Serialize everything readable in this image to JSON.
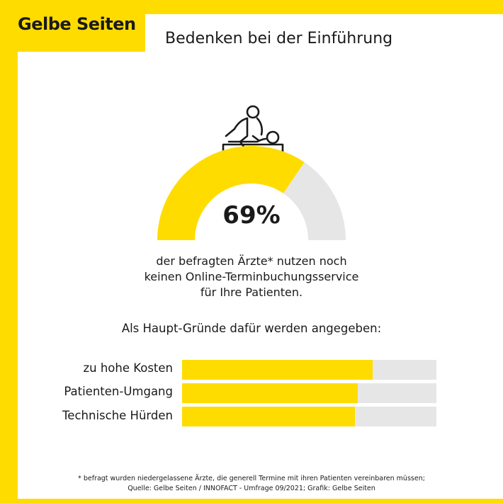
{
  "brand": "Gelbe Seiten",
  "title": "Bedenken bei der Einführung",
  "icon": "massage-therapy-icon",
  "colors": {
    "accent": "#ffdc00",
    "track": "#e6e6e6",
    "text": "#1a1a1a"
  },
  "gauge": {
    "value": 69,
    "label": "69%"
  },
  "description": [
    "der befragten Ärzte* nutzen noch",
    "keinen Online-Terminbuchungsservice",
    "für Ihre Patienten."
  ],
  "subheading": "Als Haupt-Gründe dafür werden angegeben:",
  "chart_data": [
    {
      "type": "pie",
      "categories": [
        "nutzen noch keinen Online-Terminbuchungsservice",
        "Rest"
      ],
      "values": [
        69,
        31
      ],
      "value_label": "69%"
    },
    {
      "type": "bar",
      "orientation": "horizontal",
      "categories": [
        "zu hohe Kosten",
        "Patienten-Umgang",
        "Technische Hürden"
      ],
      "values": [
        75,
        69,
        68
      ],
      "xlim": [
        0,
        100
      ],
      "grid": false,
      "legend": "none"
    }
  ],
  "footnote": [
    "* befragt wurden niedergelassene Ärzte, die generell Termine mit ihren Patienten vereinbaren müssen;",
    "Quelle: Gelbe Seiten / INNOFACT - Umfrage 09/2021; Grafik: Gelbe Seiten"
  ]
}
